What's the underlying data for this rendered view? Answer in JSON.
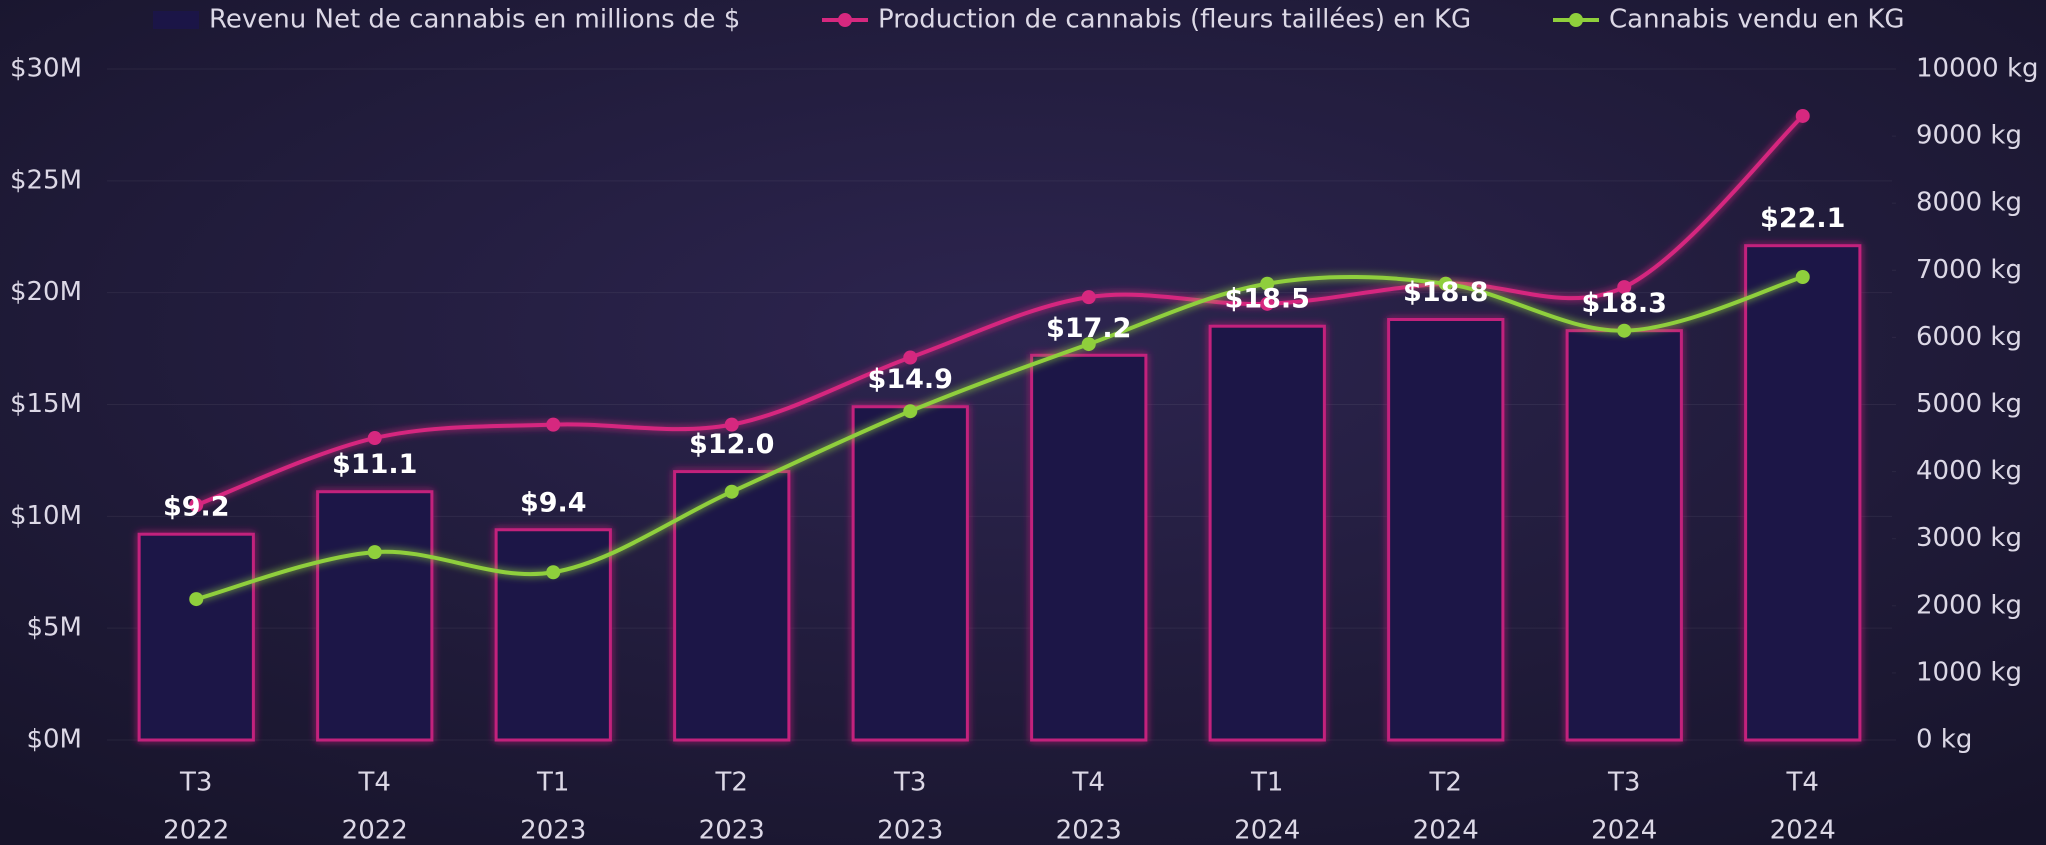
{
  "chart_data": {
    "type": "bar-line",
    "categories": [
      [
        "T3",
        "2022"
      ],
      [
        "T4",
        "2022"
      ],
      [
        "T1",
        "2023"
      ],
      [
        "T2",
        "2023"
      ],
      [
        "T3",
        "2023"
      ],
      [
        "T4",
        "2023"
      ],
      [
        "T1",
        "2024"
      ],
      [
        "T2",
        "2024"
      ],
      [
        "T3",
        "2024"
      ],
      [
        "T4",
        "2024"
      ]
    ],
    "series": [
      {
        "name": "Revenu Net de cannabis en millions de $",
        "type": "bar",
        "color": "#1b1547",
        "stroke": "#c2207c",
        "values": [
          9.2,
          11.1,
          9.4,
          12.0,
          14.9,
          17.2,
          18.5,
          18.8,
          18.3,
          22.1
        ],
        "value_labels": [
          "$9.2",
          "$11.1",
          "$9.4",
          "$12.0",
          "$14.9",
          "$17.2",
          "$18.5",
          "$18.8",
          "$18.3",
          "$22.1"
        ]
      },
      {
        "name": "Production de cannabis (fleurs taillées) en KG",
        "type": "line",
        "axis": "y2",
        "color": "#d6287f",
        "values": [
          3500,
          4500,
          4700,
          4700,
          5700,
          6600,
          6500,
          6800,
          6750,
          9300
        ]
      },
      {
        "name": "Cannabis vendu en KG",
        "type": "line",
        "axis": "y2",
        "color": "#8fcf3c",
        "values": [
          2100,
          2800,
          2500,
          3700,
          4900,
          5900,
          6800,
          6800,
          6100,
          6900
        ]
      }
    ],
    "ylim": [
      0,
      30
    ],
    "yticks": [
      {
        "value": 0,
        "label": "$0M"
      },
      {
        "value": 5,
        "label": "$5M"
      },
      {
        "value": 10,
        "label": "$10M"
      },
      {
        "value": 15,
        "label": "$15M"
      },
      {
        "value": 20,
        "label": "$20M"
      },
      {
        "value": 25,
        "label": "$25M"
      },
      {
        "value": 30,
        "label": "$30M"
      }
    ],
    "y2lim": [
      0,
      10000
    ],
    "y2ticks": [
      {
        "value": 0,
        "label": "0 kg"
      },
      {
        "value": 1000,
        "label": "1000 kg"
      },
      {
        "value": 2000,
        "label": "2000 kg"
      },
      {
        "value": 3000,
        "label": "3000 kg"
      },
      {
        "value": 4000,
        "label": "4000 kg"
      },
      {
        "value": 5000,
        "label": "5000 kg"
      },
      {
        "value": 6000,
        "label": "6000 kg"
      },
      {
        "value": 7000,
        "label": "7000 kg"
      },
      {
        "value": 8000,
        "label": "8000 kg"
      },
      {
        "value": 9000,
        "label": "9000 kg"
      },
      {
        "value": 10000,
        "label": "10000 kg"
      }
    ],
    "grid": true,
    "legend": "top"
  }
}
